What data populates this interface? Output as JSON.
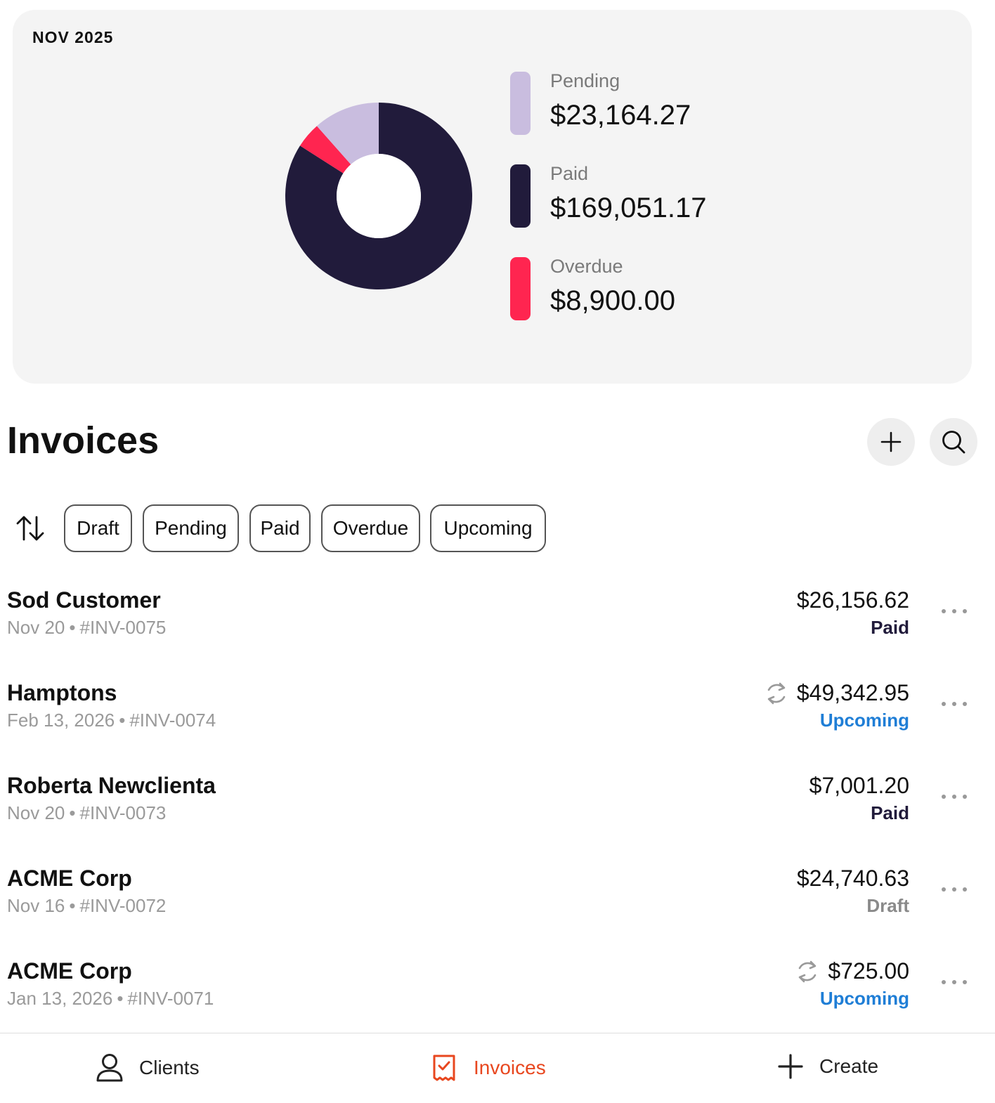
{
  "summary": {
    "period": "NOV 2025",
    "legend": [
      {
        "key": "pending",
        "label": "Pending",
        "value": "$23,164.27",
        "color": "#c9bddf"
      },
      {
        "key": "paid",
        "label": "Paid",
        "value": "$169,051.17",
        "color": "#211b3b"
      },
      {
        "key": "overdue",
        "label": "Overdue",
        "value": "$8,900.00",
        "color": "#ff2550"
      }
    ]
  },
  "chart_data": {
    "type": "pie",
    "categories": [
      "Pending",
      "Paid",
      "Overdue"
    ],
    "values": [
      23164.27,
      169051.17,
      8900.0
    ],
    "colors": [
      "#c9bddf",
      "#211b3b",
      "#ff2550"
    ],
    "title": "NOV 2025"
  },
  "header": {
    "title": "Invoices",
    "add_icon": "plus-icon",
    "search_icon": "search-icon"
  },
  "filters": {
    "sort_icon": "sort-arrows-icon",
    "chips": [
      "Draft",
      "Pending",
      "Paid",
      "Overdue",
      "Upcoming"
    ]
  },
  "status_colors": {
    "Paid": "#211b3b",
    "Upcoming": "#1f7ed6",
    "Draft": "#8a8a8a"
  },
  "invoices": [
    {
      "client": "Sod Customer",
      "date": "Nov 20",
      "number": "#INV-0075",
      "amount": "$26,156.62",
      "status": "Paid",
      "recurring": false
    },
    {
      "client": "Hamptons",
      "date": "Feb 13, 2026",
      "number": "#INV-0074",
      "amount": "$49,342.95",
      "status": "Upcoming",
      "recurring": true
    },
    {
      "client": "Roberta Newclienta",
      "date": "Nov 20",
      "number": "#INV-0073",
      "amount": "$7,001.20",
      "status": "Paid",
      "recurring": false
    },
    {
      "client": "ACME Corp",
      "date": "Nov 16",
      "number": "#INV-0072",
      "amount": "$24,740.63",
      "status": "Draft",
      "recurring": false
    },
    {
      "client": "ACME Corp",
      "date": "Jan 13, 2026",
      "number": "#INV-0071",
      "amount": "$725.00",
      "status": "Upcoming",
      "recurring": true
    }
  ],
  "nav": {
    "items": [
      {
        "label": "Clients",
        "icon": "person-icon",
        "active": false
      },
      {
        "label": "Invoices",
        "icon": "receipt-icon",
        "active": true
      },
      {
        "label": "Create",
        "icon": "plus-icon",
        "active": false
      }
    ],
    "active_color": "#e8471f"
  }
}
